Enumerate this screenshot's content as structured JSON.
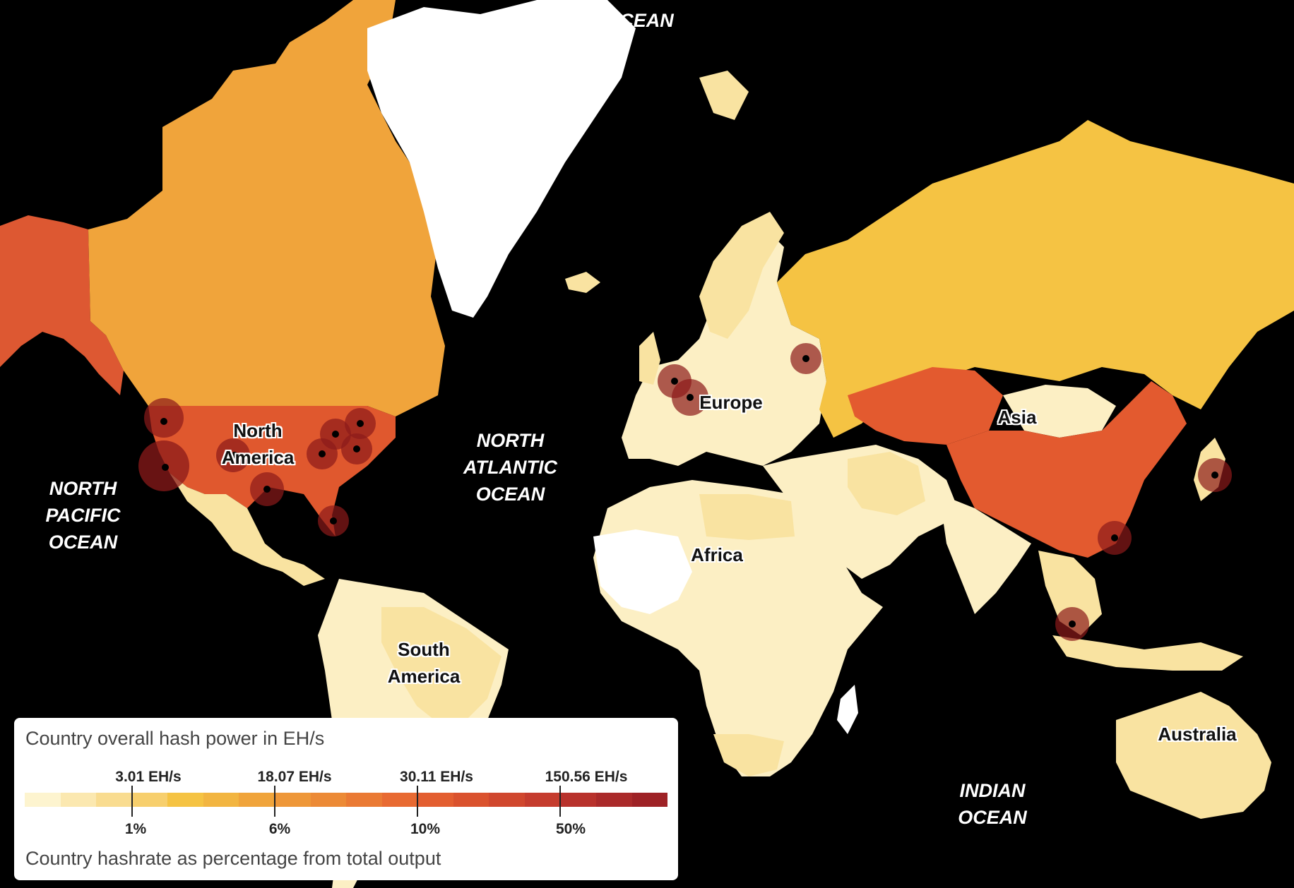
{
  "colors": {
    "water": "#000000",
    "greenland": "#ffffff",
    "low": "#fcefc4",
    "light": "#f9e3a1",
    "mid_yellow": "#f5c343",
    "canada": "#f0a43b",
    "usa": "#e0582e",
    "china": "#e35a2f",
    "alaska": "#dd5832",
    "marker": "#8b1a1a"
  },
  "oceans": [
    {
      "name": "arctic",
      "label": "OCEAN"
    },
    {
      "name": "north-atlantic",
      "label": "NORTH\nATLANTIC\nOCEAN"
    },
    {
      "name": "north-pacific",
      "label": "NORTH\nPACIFIC\nOCEAN"
    },
    {
      "name": "indian",
      "label": "INDIAN\nOCEAN"
    }
  ],
  "continents": [
    {
      "name": "north-america",
      "label": "North\nAmerica"
    },
    {
      "name": "south-america",
      "label": "South\nAmerica"
    },
    {
      "name": "europe",
      "label": "Europe"
    },
    {
      "name": "africa",
      "label": "Africa"
    },
    {
      "name": "asia",
      "label": "Asia"
    },
    {
      "name": "australia",
      "label": "Australia"
    }
  ],
  "legend": {
    "title_top": "Country overall hash power in EH/s",
    "title_bottom": "Country hashrate as percentage from total output",
    "swatches": [
      "#fdf4cf",
      "#fbe8b0",
      "#f9dc90",
      "#f7cf6d",
      "#f5c343",
      "#f2b541",
      "#f0a43b",
      "#ee9739",
      "#ec8a36",
      "#ea7a34",
      "#e86a32",
      "#e35e30",
      "#da522e",
      "#d0472e",
      "#c53c2e",
      "#b8322c",
      "#aa2a2a",
      "#9e2226"
    ],
    "ticks": [
      {
        "ehs": "3.01 EH/s",
        "pct": "1%"
      },
      {
        "ehs": "18.07 EH/s",
        "pct": "6%"
      },
      {
        "ehs": "30.11 EH/s",
        "pct": "10%"
      },
      {
        "ehs": "150.56 EH/s",
        "pct": "50%"
      }
    ]
  }
}
